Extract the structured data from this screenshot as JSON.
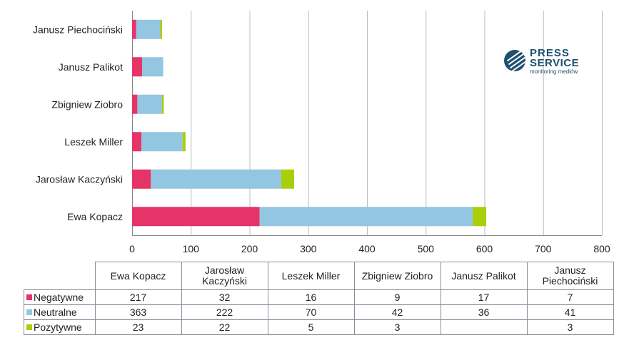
{
  "chart_data": {
    "type": "bar",
    "orientation": "horizontal",
    "stacked": true,
    "categories": [
      "Ewa Kopacz",
      "Jarosław Kaczyński",
      "Leszek Miller",
      "Zbigniew Ziobro",
      "Janusz Palikot",
      "Janusz Piechociński"
    ],
    "header_labels": [
      "Ewa Kopacz",
      "Jarosław\nKaczyński",
      "Leszek Miller",
      "Zbigniew Ziobro",
      "Janusz Palikot",
      "Janusz\nPiechociński"
    ],
    "series": [
      {
        "name": "Negatywne",
        "color": "#e63468",
        "values": [
          217,
          32,
          16,
          9,
          17,
          7
        ]
      },
      {
        "name": "Neutralne",
        "color": "#93c6e0",
        "values": [
          363,
          222,
          70,
          42,
          36,
          41
        ]
      },
      {
        "name": "Pozytywne",
        "color": "#a8cf0a",
        "values": [
          23,
          22,
          5,
          3,
          null,
          3
        ]
      }
    ],
    "xlim": [
      0,
      800
    ],
    "xticks": [
      0,
      100,
      200,
      300,
      400,
      500,
      600,
      700,
      800
    ],
    "grid": true,
    "legend": "data-table-below"
  },
  "logo": {
    "line1": "PRESS",
    "line2": "SERVICE",
    "line3": "monitoring mediów"
  }
}
